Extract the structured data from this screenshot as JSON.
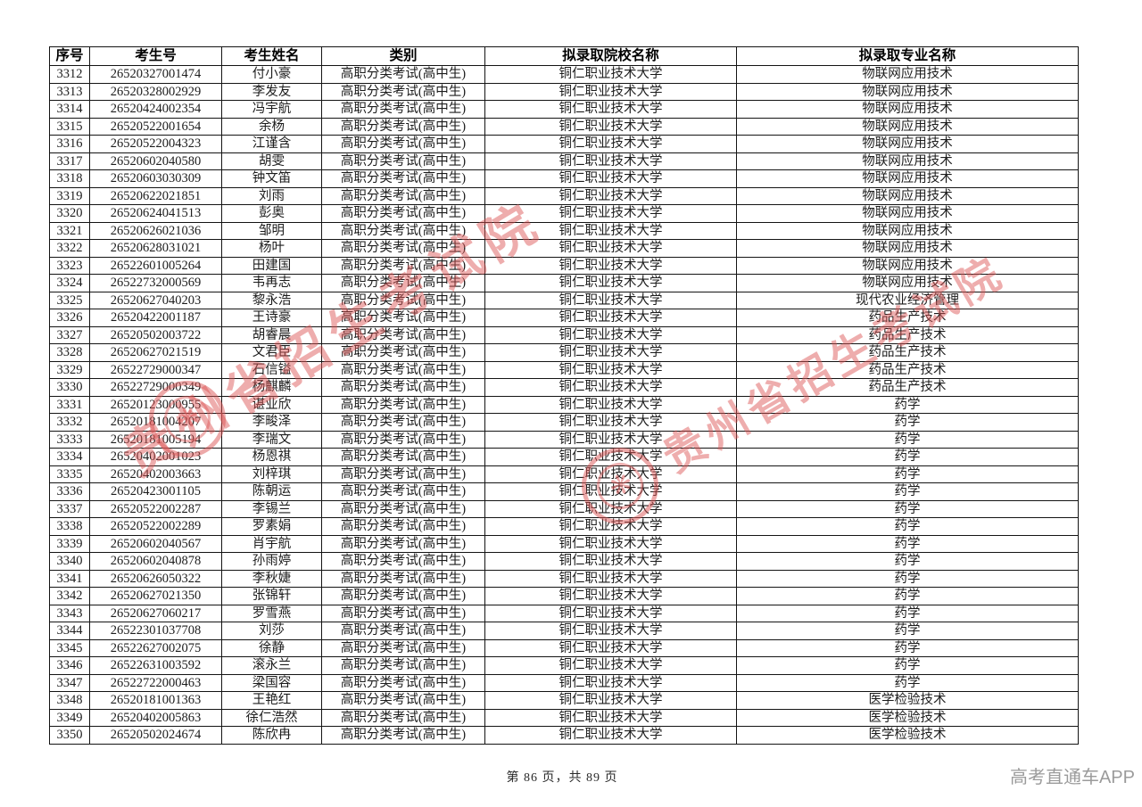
{
  "colors": {
    "watermark_red": "#db5454",
    "brand_gray": "#9b9b9b",
    "table_border": "#141414"
  },
  "watermark": {
    "text": "贵州省招生考试院"
  },
  "footer": {
    "page_info": "第 86 页，共 89 页",
    "brand": "高考直通车APP"
  },
  "table": {
    "column_keys": [
      "serial",
      "candidate-no",
      "name",
      "category",
      "college",
      "major"
    ],
    "headers": [
      "序号",
      "考生号",
      "考生姓名",
      "类别",
      "拟录取院校名称",
      "拟录取专业名称"
    ],
    "rows": [
      [
        "3312",
        "26520327001474",
        "付小豪",
        "高职分类考试(高中生)",
        "铜仁职业技术大学",
        "物联网应用技术"
      ],
      [
        "3313",
        "26520328002929",
        "李发友",
        "高职分类考试(高中生)",
        "铜仁职业技术大学",
        "物联网应用技术"
      ],
      [
        "3314",
        "26520424002354",
        "冯宇航",
        "高职分类考试(高中生)",
        "铜仁职业技术大学",
        "物联网应用技术"
      ],
      [
        "3315",
        "26520522001654",
        "余杨",
        "高职分类考试(高中生)",
        "铜仁职业技术大学",
        "物联网应用技术"
      ],
      [
        "3316",
        "26520522004323",
        "江谨含",
        "高职分类考试(高中生)",
        "铜仁职业技术大学",
        "物联网应用技术"
      ],
      [
        "3317",
        "26520602040580",
        "胡雯",
        "高职分类考试(高中生)",
        "铜仁职业技术大学",
        "物联网应用技术"
      ],
      [
        "3318",
        "26520603030309",
        "钟文笛",
        "高职分类考试(高中生)",
        "铜仁职业技术大学",
        "物联网应用技术"
      ],
      [
        "3319",
        "26520622021851",
        "刘雨",
        "高职分类考试(高中生)",
        "铜仁职业技术大学",
        "物联网应用技术"
      ],
      [
        "3320",
        "26520624041513",
        "彭奥",
        "高职分类考试(高中生)",
        "铜仁职业技术大学",
        "物联网应用技术"
      ],
      [
        "3321",
        "26520626021036",
        "邹明",
        "高职分类考试(高中生)",
        "铜仁职业技术大学",
        "物联网应用技术"
      ],
      [
        "3322",
        "26520628031021",
        "杨叶",
        "高职分类考试(高中生)",
        "铜仁职业技术大学",
        "物联网应用技术"
      ],
      [
        "3323",
        "26522601005264",
        "田建国",
        "高职分类考试(高中生)",
        "铜仁职业技术大学",
        "物联网应用技术"
      ],
      [
        "3324",
        "26522732000569",
        "韦再志",
        "高职分类考试(高中生)",
        "铜仁职业技术大学",
        "物联网应用技术"
      ],
      [
        "3325",
        "26520627040203",
        "黎永浩",
        "高职分类考试(高中生)",
        "铜仁职业技术大学",
        "现代农业经济管理"
      ],
      [
        "3326",
        "26520422001187",
        "王诗豪",
        "高职分类考试(高中生)",
        "铜仁职业技术大学",
        "药品生产技术"
      ],
      [
        "3327",
        "26520502003722",
        "胡睿晨",
        "高职分类考试(高中生)",
        "铜仁职业技术大学",
        "药品生产技术"
      ],
      [
        "3328",
        "26520627021519",
        "文君臣",
        "高职分类考试(高中生)",
        "铜仁职业技术大学",
        "药品生产技术"
      ],
      [
        "3329",
        "26522729000347",
        "石信镒",
        "高职分类考试(高中生)",
        "铜仁职业技术大学",
        "药品生产技术"
      ],
      [
        "3330",
        "26522729000349",
        "杨麒麟",
        "高职分类考试(高中生)",
        "铜仁职业技术大学",
        "药品生产技术"
      ],
      [
        "3331",
        "26520123000955",
        "谌业欣",
        "高职分类考试(高中生)",
        "铜仁职业技术大学",
        "药学"
      ],
      [
        "3332",
        "26520181004207",
        "李畯泽",
        "高职分类考试(高中生)",
        "铜仁职业技术大学",
        "药学"
      ],
      [
        "3333",
        "26520181005194",
        "李瑞文",
        "高职分类考试(高中生)",
        "铜仁职业技术大学",
        "药学"
      ],
      [
        "3334",
        "26520402001023",
        "杨恩祺",
        "高职分类考试(高中生)",
        "铜仁职业技术大学",
        "药学"
      ],
      [
        "3335",
        "26520402003663",
        "刘梓琪",
        "高职分类考试(高中生)",
        "铜仁职业技术大学",
        "药学"
      ],
      [
        "3336",
        "26520423001105",
        "陈朝运",
        "高职分类考试(高中生)",
        "铜仁职业技术大学",
        "药学"
      ],
      [
        "3337",
        "26520522002287",
        "李锡兰",
        "高职分类考试(高中生)",
        "铜仁职业技术大学",
        "药学"
      ],
      [
        "3338",
        "26520522002289",
        "罗素娟",
        "高职分类考试(高中生)",
        "铜仁职业技术大学",
        "药学"
      ],
      [
        "3339",
        "26520602040567",
        "肖宇航",
        "高职分类考试(高中生)",
        "铜仁职业技术大学",
        "药学"
      ],
      [
        "3340",
        "26520602040878",
        "孙雨婷",
        "高职分类考试(高中生)",
        "铜仁职业技术大学",
        "药学"
      ],
      [
        "3341",
        "26520626050322",
        "李秋婕",
        "高职分类考试(高中生)",
        "铜仁职业技术大学",
        "药学"
      ],
      [
        "3342",
        "26520627021350",
        "张锦轩",
        "高职分类考试(高中生)",
        "铜仁职业技术大学",
        "药学"
      ],
      [
        "3343",
        "26520627060217",
        "罗雪燕",
        "高职分类考试(高中生)",
        "铜仁职业技术大学",
        "药学"
      ],
      [
        "3344",
        "26522301037708",
        "刘莎",
        "高职分类考试(高中生)",
        "铜仁职业技术大学",
        "药学"
      ],
      [
        "3345",
        "26522627002075",
        "徐静",
        "高职分类考试(高中生)",
        "铜仁职业技术大学",
        "药学"
      ],
      [
        "3346",
        "26522631003592",
        "滚永兰",
        "高职分类考试(高中生)",
        "铜仁职业技术大学",
        "药学"
      ],
      [
        "3347",
        "26522722000463",
        "梁国容",
        "高职分类考试(高中生)",
        "铜仁职业技术大学",
        "药学"
      ],
      [
        "3348",
        "26520181001363",
        "王艳红",
        "高职分类考试(高中生)",
        "铜仁职业技术大学",
        "医学检验技术"
      ],
      [
        "3349",
        "26520402005863",
        "徐仁浩然",
        "高职分类考试(高中生)",
        "铜仁职业技术大学",
        "医学检验技术"
      ],
      [
        "3350",
        "26520502024674",
        "陈欣冉",
        "高职分类考试(高中生)",
        "铜仁职业技术大学",
        "医学检验技术"
      ]
    ]
  }
}
